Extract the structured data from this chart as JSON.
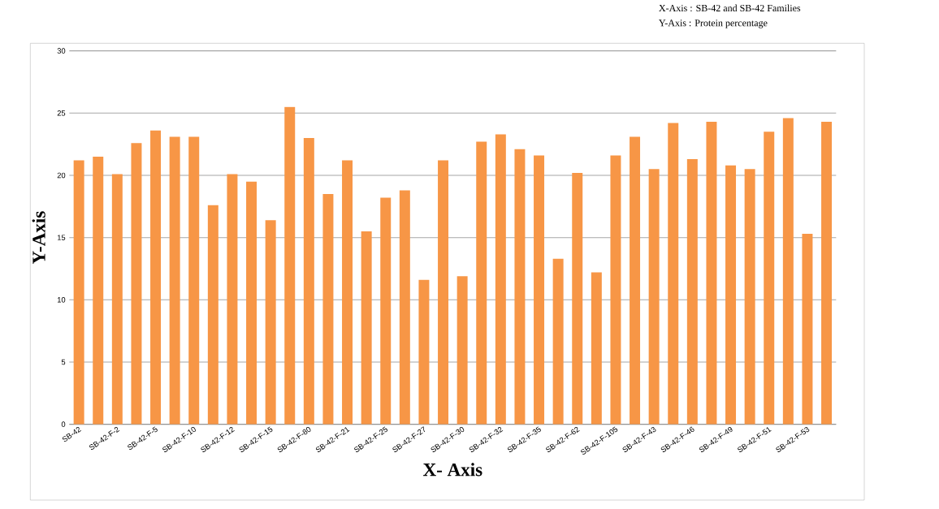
{
  "chart_data": {
    "type": "bar",
    "xlabel": "X- Axis",
    "ylabel": "Y-Axis",
    "annotations": [
      "X-Axis : SB-42 and SB-42 Families",
      "Y-Axis : Protein percentage"
    ],
    "categories": [
      "SB-42",
      null,
      "SB-42-F-2",
      null,
      "SB-42-F-5",
      null,
      "SB-42-F-10",
      null,
      "SB-42-F-12",
      null,
      "SB-42-F-15",
      null,
      "SB-42-F-80",
      null,
      "SB-42-F-21",
      null,
      "SB-42-F-25",
      null,
      "SB-42-F-27",
      null,
      "SB-42-F-30",
      null,
      "SB-42-F-32",
      null,
      "SB-42-F-35",
      null,
      "SB-42-F-62",
      null,
      "SB-42-F-105",
      null,
      "SB-42-F-43",
      null,
      "SB-42-F-46",
      null,
      "SB-42-F-49",
      null,
      "SB-42-F-51",
      null,
      "SB-42-F-53",
      null
    ],
    "values": [
      21.2,
      21.5,
      20.1,
      22.6,
      23.6,
      23.1,
      23.1,
      17.6,
      20.1,
      19.5,
      16.4,
      25.5,
      23.0,
      18.5,
      21.2,
      15.5,
      18.2,
      18.8,
      11.6,
      21.2,
      11.9,
      22.7,
      23.3,
      22.1,
      21.6,
      13.3,
      20.2,
      12.2,
      21.6,
      23.1,
      20.5,
      24.2,
      21.3,
      24.3,
      20.8,
      20.5,
      23.5,
      24.6,
      15.3,
      24.3
    ],
    "color": "#f79646",
    "ylim": [
      0,
      30
    ],
    "yticks": [
      0,
      5,
      10,
      15,
      20,
      25,
      30
    ],
    "grid": "y"
  }
}
